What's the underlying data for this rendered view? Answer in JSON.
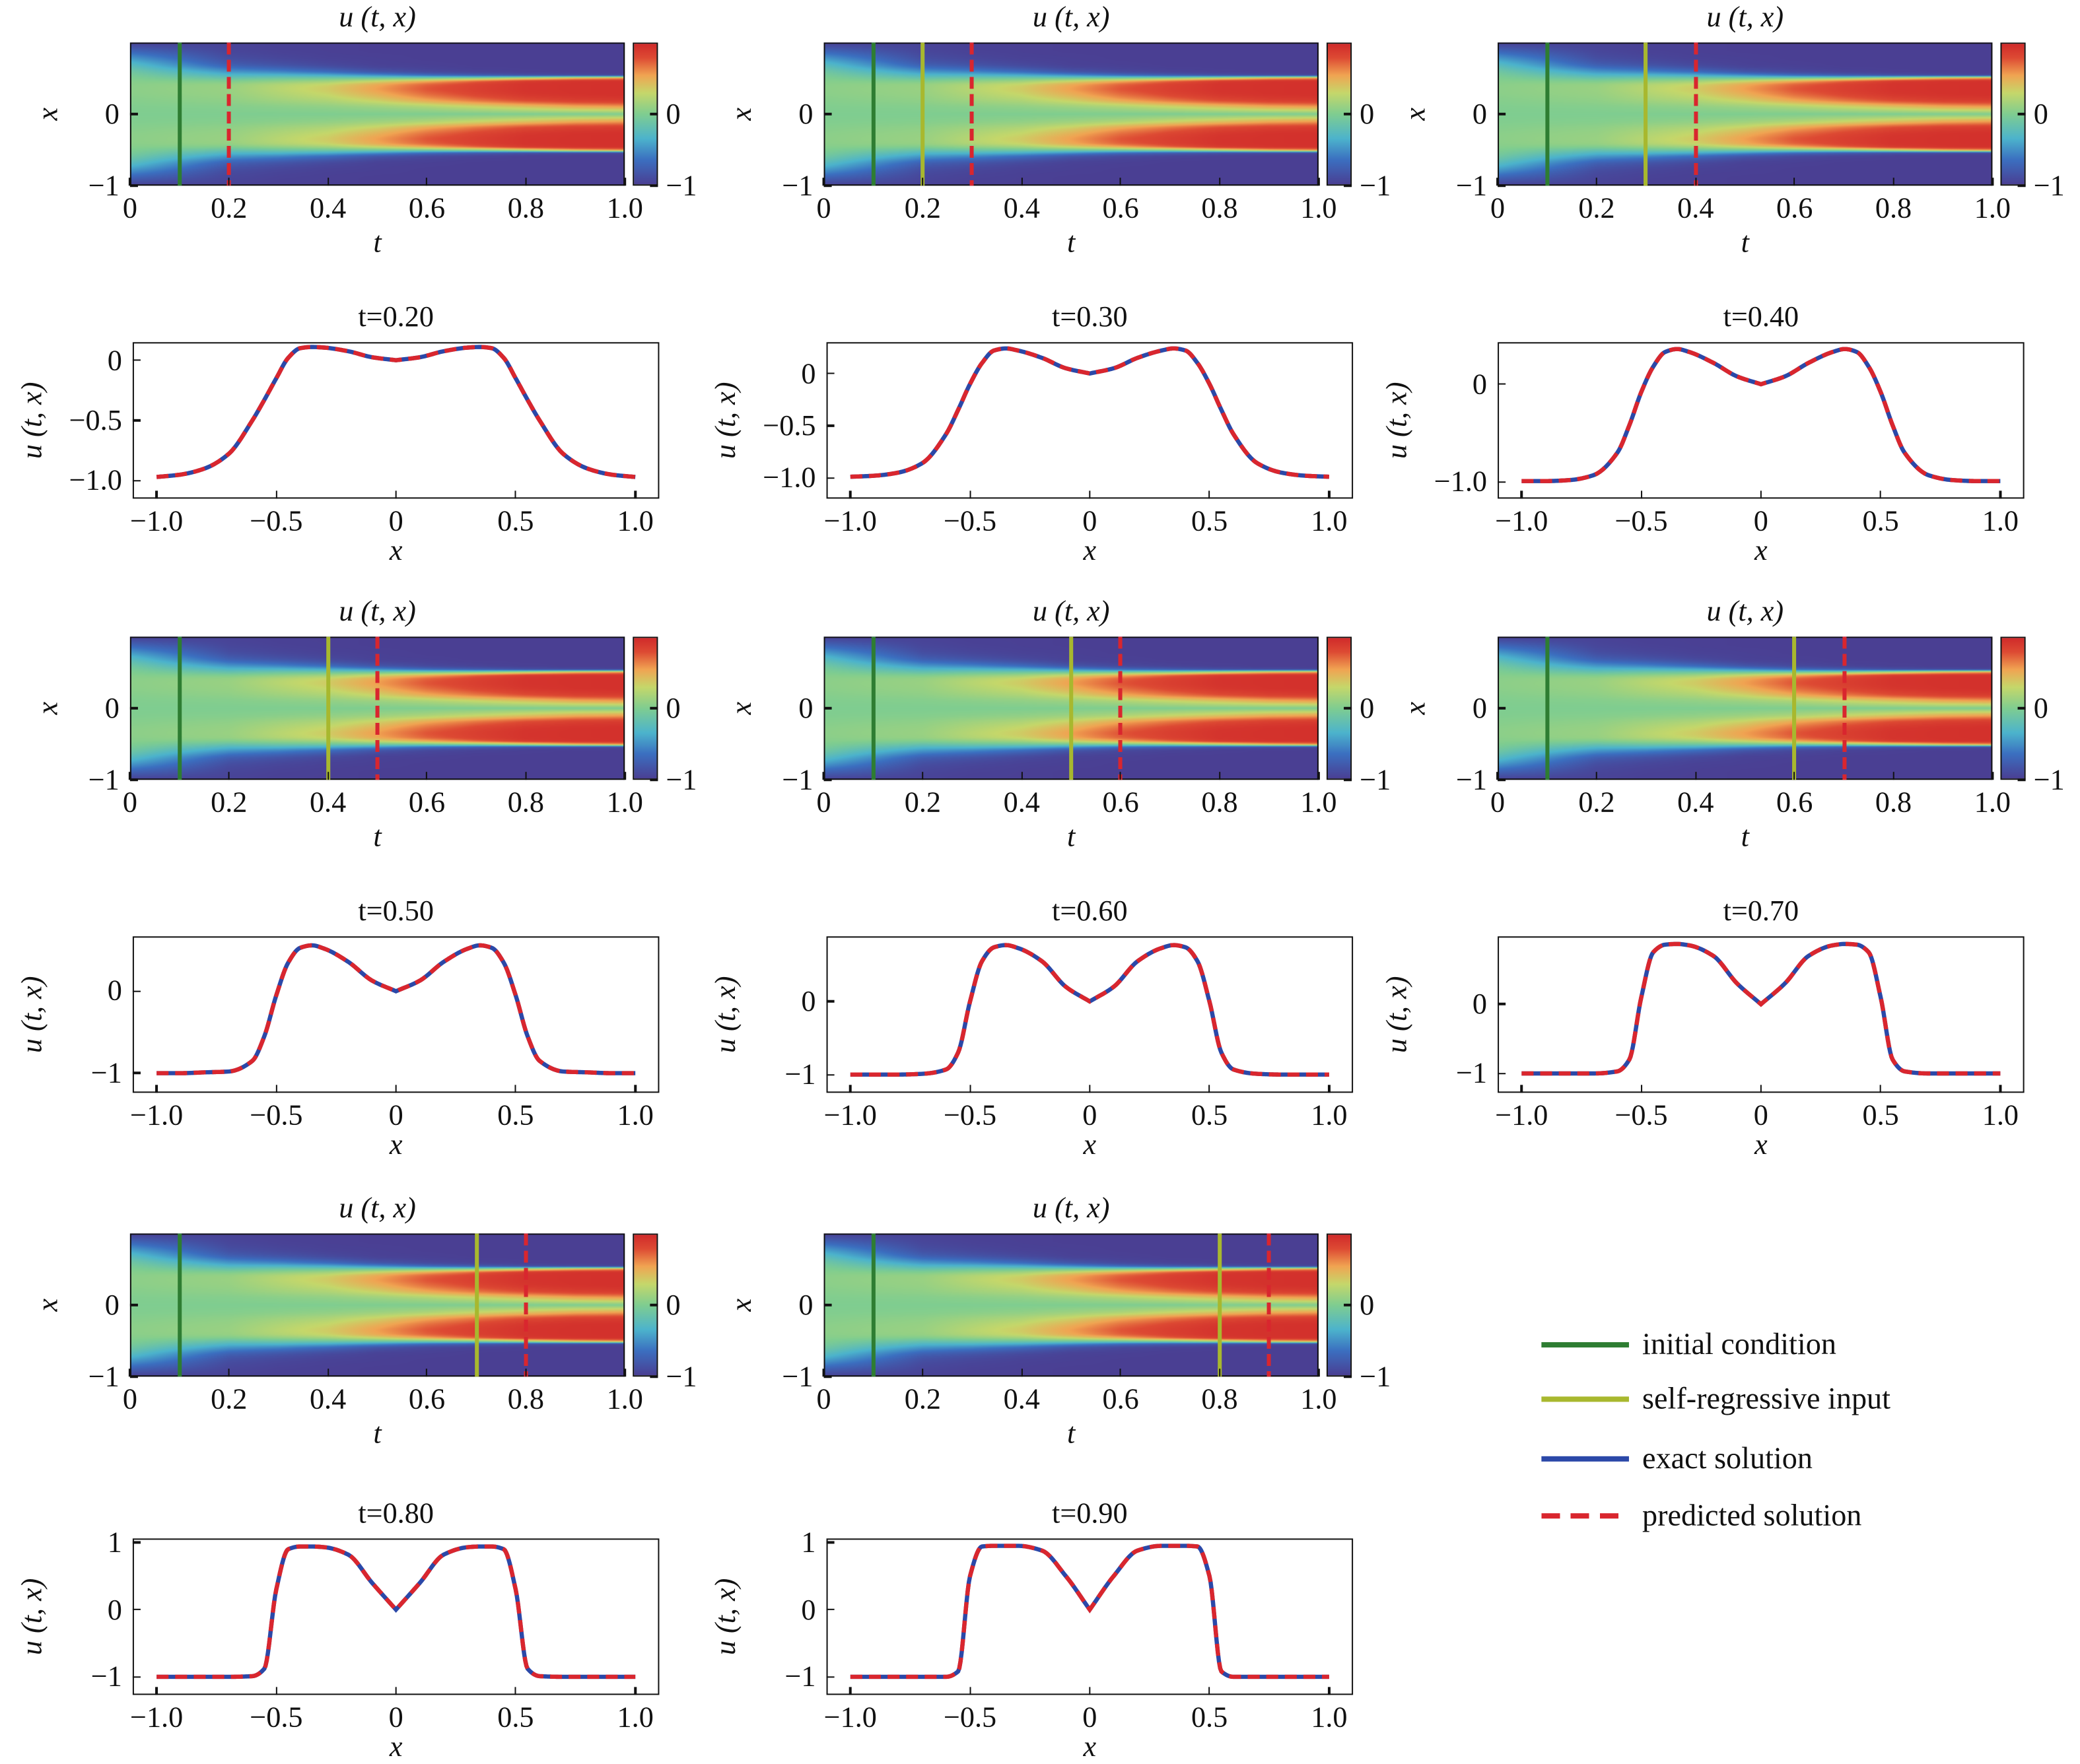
{
  "common": {
    "heatmap_title": "u (t, x)",
    "heatmap_xlabel": "t",
    "heatmap_ylabel": "x",
    "heatmap_xticks": [
      "0",
      "0.2",
      "0.4",
      "0.6",
      "0.8",
      "1.0"
    ],
    "heatmap_yticks": [
      {
        "v": 0,
        "label": "0"
      },
      {
        "v": -1,
        "label": "−1"
      }
    ],
    "colorbar_ticks": [
      {
        "v": 0,
        "label": "0"
      },
      {
        "v": -1,
        "label": "−1"
      }
    ],
    "line_xlabel": "x",
    "line_ylabel": "u (t, x)",
    "line_xticks": [
      "−1.0",
      "−0.5",
      "0",
      "0.5",
      "1.0"
    ],
    "colors": {
      "initial_condition": "#2e7d32",
      "self_regressive_input": "#a8b82e",
      "exact_solution": "#2b48a8",
      "predicted_solution": "#d9262e"
    },
    "colormap": [
      [
        -1,
        "#4a3f93"
      ],
      [
        -0.65,
        "#3b6fc0"
      ],
      [
        -0.35,
        "#4cb3cc"
      ],
      [
        0,
        "#7fcd90"
      ],
      [
        0.3,
        "#c5d76a"
      ],
      [
        0.55,
        "#f0a452"
      ],
      [
        0.8,
        "#dd4a33"
      ],
      [
        1,
        "#d02a2a"
      ]
    ]
  },
  "legend": [
    {
      "label": "initial condition",
      "color": "#2e7d32",
      "style": "solid"
    },
    {
      "label": "self-regressive input",
      "color": "#a8b82e",
      "style": "solid"
    },
    {
      "label": "exact solution",
      "color": "#2b48a8",
      "style": "solid"
    },
    {
      "label": "predicted solution",
      "color": "#d9262e",
      "style": "dashed"
    }
  ],
  "chart_data": {
    "type": "heatmap+line",
    "x_samples": [
      0,
      0.1,
      0.2,
      0.3,
      0.35,
      0.4,
      0.45,
      0.5,
      0.55,
      0.6,
      0.7,
      0.8,
      0.9,
      1.0
    ],
    "symmetric_in_x": true,
    "profiles": [
      {
        "t": 0.0,
        "u": [
          0,
          0.0095,
          0.032,
          0.053,
          0.055,
          0.049,
          0.032,
          0,
          -0.047,
          -0.111,
          -0.288,
          -0.518,
          -0.77,
          -1
        ]
      },
      {
        "t": 0.2,
        "u": [
          0,
          0.025,
          0.075,
          0.105,
          0.11,
          0.1,
          0.02,
          -0.15,
          -0.33,
          -0.5,
          -0.78,
          -0.9,
          -0.95,
          -0.97
        ]
      },
      {
        "t": 0.3,
        "u": [
          0,
          0.05,
          0.15,
          0.22,
          0.24,
          0.22,
          0.1,
          -0.1,
          -0.35,
          -0.58,
          -0.86,
          -0.95,
          -0.98,
          -0.99
        ]
      },
      {
        "t": 0.4,
        "u": [
          0,
          0.08,
          0.22,
          0.33,
          0.36,
          0.33,
          0.18,
          -0.08,
          -0.42,
          -0.7,
          -0.93,
          -0.98,
          -0.99,
          -0.99
        ]
      },
      {
        "t": 0.5,
        "u": [
          0,
          0.13,
          0.36,
          0.52,
          0.56,
          0.53,
          0.35,
          -0.05,
          -0.55,
          -0.85,
          -0.98,
          -0.99,
          -1,
          -1
        ]
      },
      {
        "t": 0.6,
        "u": [
          0,
          0.2,
          0.55,
          0.73,
          0.77,
          0.74,
          0.55,
          0,
          -0.7,
          -0.93,
          -0.99,
          -1,
          -1,
          -1
        ]
      },
      {
        "t": 0.7,
        "u": [
          0,
          0.3,
          0.7,
          0.85,
          0.87,
          0.86,
          0.75,
          0.1,
          -0.8,
          -0.97,
          -1,
          -1,
          -1,
          -1
        ]
      },
      {
        "t": 0.8,
        "u": [
          0,
          0.4,
          0.82,
          0.93,
          0.94,
          0.94,
          0.9,
          0.3,
          -0.88,
          -0.99,
          -1,
          -1,
          -1,
          -1
        ]
      },
      {
        "t": 0.9,
        "u": [
          0,
          0.5,
          0.88,
          0.95,
          0.95,
          0.95,
          0.94,
          0.5,
          -0.92,
          -1,
          -1,
          -1,
          -1,
          -1
        ]
      },
      {
        "t": 1.0,
        "u": [
          0,
          0.55,
          0.9,
          0.96,
          0.96,
          0.96,
          0.95,
          0.6,
          -0.95,
          -1,
          -1,
          -1,
          -1,
          -1
        ]
      }
    ],
    "panels": [
      {
        "t": 0.2,
        "title": "t=0.20",
        "initial_condition": 0.1,
        "self_regressive_input": null,
        "predicted": 0.2,
        "ylim": [
          -1.15,
          0.15
        ],
        "yticks": [
          {
            "v": 0,
            "label": "0"
          },
          {
            "v": -0.5,
            "label": "−0.5"
          },
          {
            "v": -1,
            "label": "−1.0"
          }
        ]
      },
      {
        "t": 0.3,
        "title": "t=0.30",
        "initial_condition": 0.1,
        "self_regressive_input": 0.2,
        "predicted": 0.3,
        "ylim": [
          -1.2,
          0.3
        ],
        "yticks": [
          {
            "v": 0,
            "label": "0"
          },
          {
            "v": -0.5,
            "label": "−0.5"
          },
          {
            "v": -1,
            "label": "−1.0"
          }
        ]
      },
      {
        "t": 0.4,
        "title": "t=0.40",
        "initial_condition": 0.1,
        "self_regressive_input": 0.3,
        "predicted": 0.4,
        "ylim": [
          -1.17,
          0.43
        ],
        "yticks": [
          {
            "v": 0,
            "label": "0"
          },
          {
            "v": -1,
            "label": "−1.0"
          }
        ]
      },
      {
        "t": 0.5,
        "title": "t=0.50",
        "initial_condition": 0.1,
        "self_regressive_input": 0.4,
        "predicted": 0.5,
        "ylim": [
          -1.24,
          0.67
        ],
        "yticks": [
          {
            "v": 0,
            "label": "0"
          },
          {
            "v": -1,
            "label": "−1"
          }
        ]
      },
      {
        "t": 0.6,
        "title": "t=0.60",
        "initial_condition": 0.1,
        "self_regressive_input": 0.5,
        "predicted": 0.6,
        "ylim": [
          -1.25,
          0.89
        ],
        "yticks": [
          {
            "v": 0,
            "label": "0"
          },
          {
            "v": -1,
            "label": "−1"
          }
        ]
      },
      {
        "t": 0.7,
        "title": "t=0.70",
        "initial_condition": 0.1,
        "self_regressive_input": 0.6,
        "predicted": 0.7,
        "ylim": [
          -1.28,
          0.98
        ],
        "yticks": [
          {
            "v": 0,
            "label": "0"
          },
          {
            "v": -1,
            "label": "−1"
          }
        ]
      },
      {
        "t": 0.8,
        "title": "t=0.80",
        "initial_condition": 0.1,
        "self_regressive_input": 0.7,
        "predicted": 0.8,
        "ylim": [
          -1.27,
          1.06
        ],
        "yticks": [
          {
            "v": 1,
            "label": "1"
          },
          {
            "v": 0,
            "label": "0"
          },
          {
            "v": -1,
            "label": "−1"
          }
        ]
      },
      {
        "t": 0.9,
        "title": "t=0.90",
        "initial_condition": 0.1,
        "self_regressive_input": 0.8,
        "predicted": 0.9,
        "ylim": [
          -1.27,
          1.06
        ],
        "yticks": [
          {
            "v": 1,
            "label": "1"
          },
          {
            "v": 0,
            "label": "0"
          },
          {
            "v": -1,
            "label": "−1"
          }
        ]
      }
    ],
    "heatmap_xlim": [
      0,
      1
    ],
    "heatmap_ylim": [
      -1,
      1
    ],
    "line_xlim": [
      -1.1,
      1.1
    ]
  }
}
